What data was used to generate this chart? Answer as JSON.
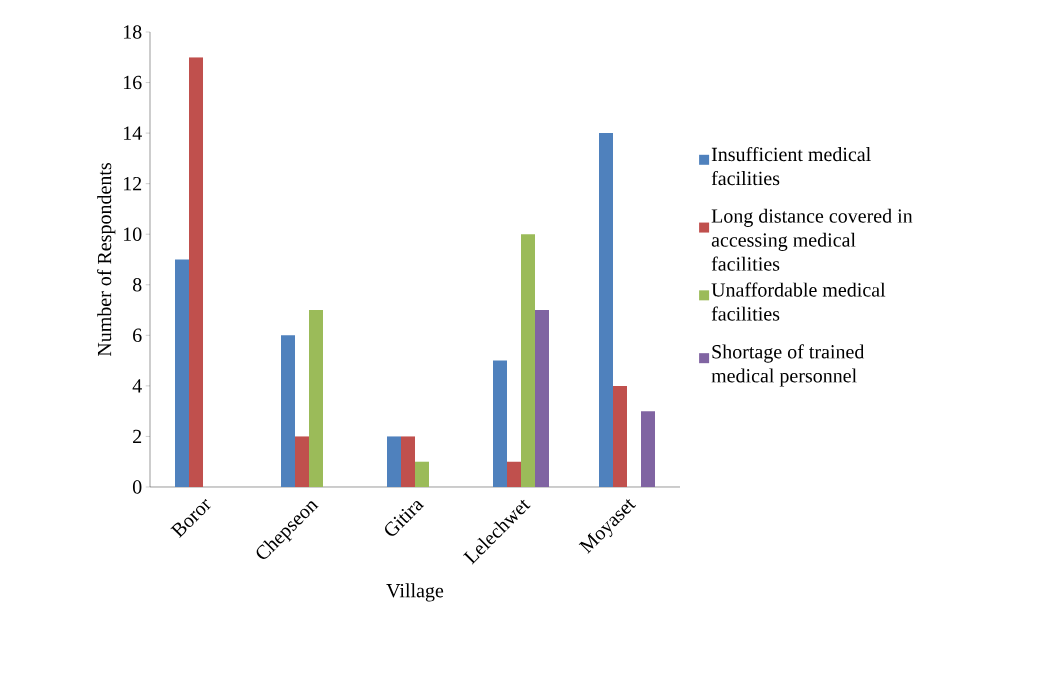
{
  "chart_data": {
    "type": "bar",
    "xlabel": "Village",
    "ylabel": "Number of Respondents",
    "categories": [
      "Boror",
      "Chepseon",
      "Gitira",
      "Lelechwet",
      "Moyaset"
    ],
    "series": [
      {
        "name": " Insufficient medical facilities",
        "color": "#4f81bd",
        "values": [
          9,
          6,
          2,
          5,
          14
        ]
      },
      {
        "name": "Long distance covered in accessing medical facilities",
        "color": "#c0504d",
        "values": [
          17,
          2,
          2,
          1,
          4
        ]
      },
      {
        "name": "Unaffordable medical facilities",
        "color": "#9bbb59",
        "values": [
          0,
          7,
          1,
          10,
          0
        ]
      },
      {
        "name": "Shortage of trained medical personnel",
        "color": "#8064a2",
        "values": [
          0,
          0,
          0,
          7,
          3
        ]
      }
    ],
    "ylim": [
      0,
      18
    ],
    "yticks": [
      0,
      2,
      4,
      6,
      8,
      10,
      12,
      14,
      16,
      18
    ],
    "legend": "right"
  }
}
